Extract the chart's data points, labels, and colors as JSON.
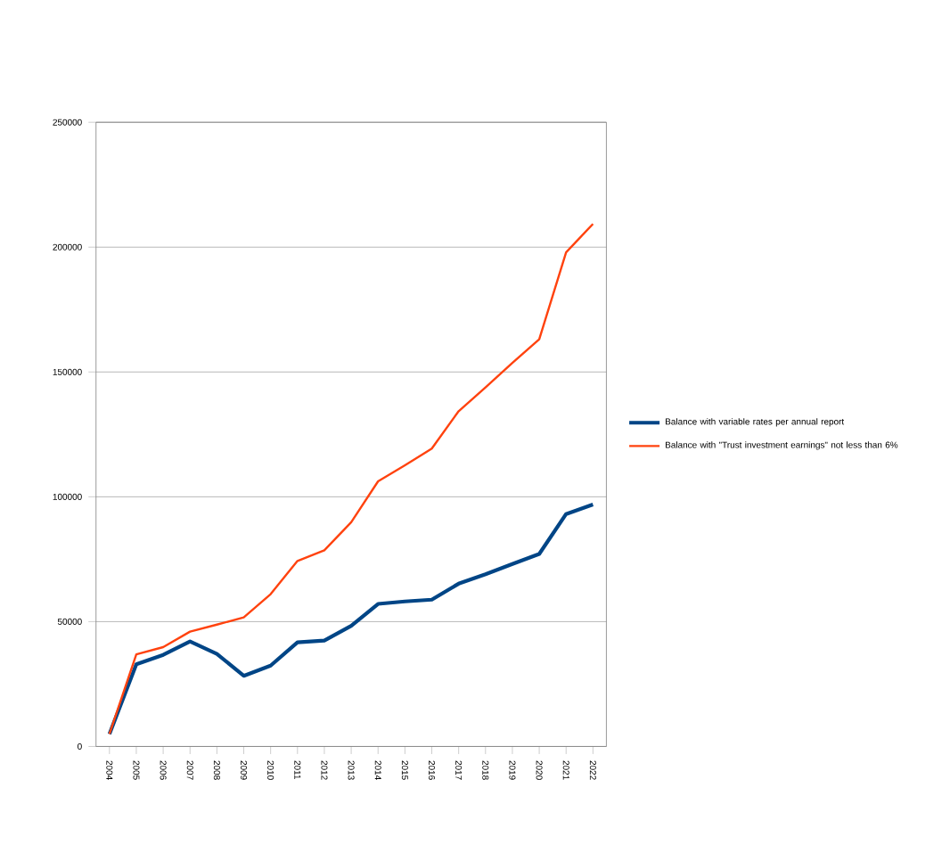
{
  "chart_data": {
    "type": "line",
    "categories": [
      "2004",
      "2005",
      "2006",
      "2007",
      "2008",
      "2009",
      "2010",
      "2011",
      "2012",
      "2013",
      "2014",
      "2015",
      "2016",
      "2017",
      "2018",
      "2019",
      "2020",
      "2021",
      "2022"
    ],
    "series": [
      {
        "name": "Balance with variable rates per annual report",
        "color": "#004586",
        "values": [
          5000,
          32900,
          36700,
          42100,
          37100,
          28300,
          32400,
          41700,
          42400,
          48300,
          57100,
          58100,
          58800,
          65200,
          69000,
          73100,
          77100,
          93100,
          96900
        ]
      },
      {
        "name": "Balance with \"Trust investment earnings\" not less than 6%",
        "color": "#ff420e",
        "values": [
          5000,
          36900,
          39800,
          46000,
          48800,
          51700,
          61000,
          74300,
          78600,
          89800,
          106200,
          112600,
          119300,
          134300,
          143800,
          153600,
          163100,
          197900,
          209300
        ]
      }
    ],
    "ylim": [
      0,
      250000
    ],
    "yticks": [
      0,
      50000,
      100000,
      150000,
      200000,
      250000
    ],
    "grid": "y",
    "legend": "right",
    "marker": "none",
    "line_style": "solid"
  }
}
